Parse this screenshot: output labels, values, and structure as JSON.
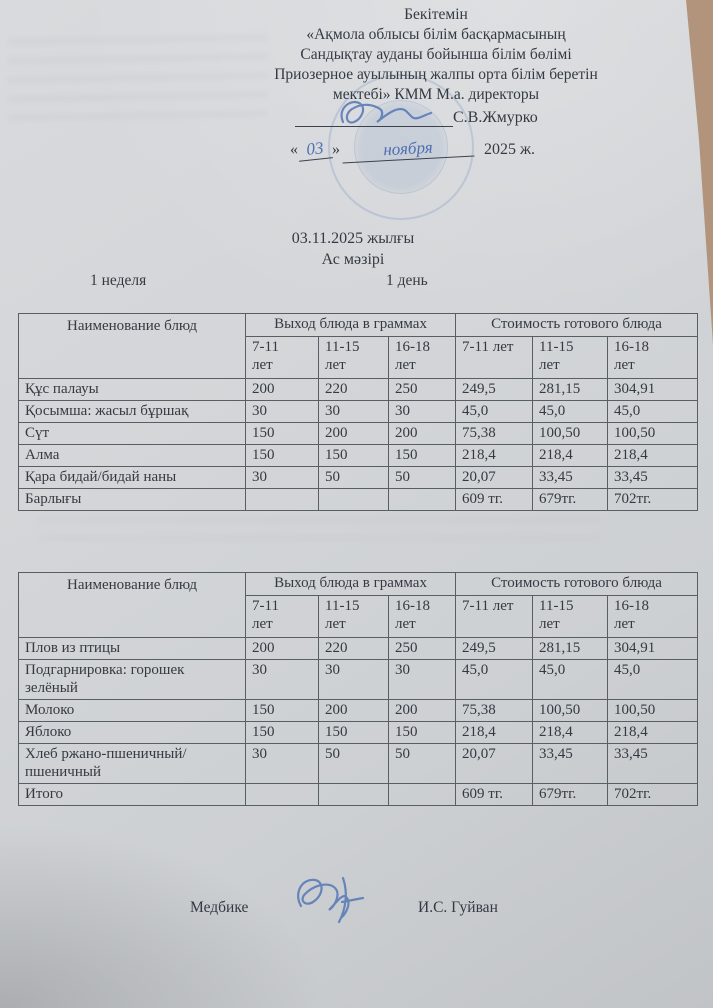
{
  "approval": {
    "approve_word": "Бекітемін",
    "org_lines": [
      "«Ақмола облысы білім басқармасының",
      "Сандықтау ауданы бойынша білім бөлімі",
      "Приозерное ауылының жалпы орта білім беретін",
      "мектебі»  КММ М.а. директоры"
    ],
    "signer_name": "С.В.Жмурко",
    "date": {
      "open_quote": "«",
      "day": "03",
      "close_quote": "»",
      "month": "ноября",
      "year": "2025 ж."
    }
  },
  "title": {
    "date_line": "03.11.2025 жылғы",
    "menu_line": "Ас мәзірі",
    "week_label": "1 неделя",
    "day_label": "1 день"
  },
  "tables": [
    {
      "name_header": "Наименование блюд",
      "group_headers": [
        "Выход блюда в граммах",
        "Стоимость готового блюда"
      ],
      "age_headers": [
        "7-11\nлет",
        "11-15\nлет",
        "16-18\nлет",
        "7-11 лет",
        "11-15\nлет",
        "16-18\nлет"
      ],
      "rows": [
        [
          "Құс палауы",
          "200",
          "220",
          "250",
          "249,5",
          "281,15",
          "304,91"
        ],
        [
          "Қосымша: жасыл бұршақ",
          "30",
          "30",
          "30",
          "45,0",
          "45,0",
          "45,0"
        ],
        [
          "Сүт",
          "150",
          "200",
          "200",
          "75,38",
          "100,50",
          "100,50"
        ],
        [
          "Алма",
          "150",
          "150",
          "150",
          "218,4",
          "218,4",
          "218,4"
        ],
        [
          "Қара бидай/бидай наны",
          "30",
          "50",
          "50",
          "20,07",
          "33,45",
          "33,45"
        ]
      ],
      "total_row": [
        "Барлығы",
        "",
        "",
        "",
        "609 тг.",
        "679тг.",
        "702тг."
      ]
    },
    {
      "name_header": "Наименование блюд",
      "group_headers": [
        "Выход блюда в граммах",
        "Стоимость готового блюда"
      ],
      "age_headers": [
        "7-11\nлет",
        "11-15\nлет",
        "16-18\nлет",
        "7-11 лет",
        "11-15\nлет",
        "16-18\nлет"
      ],
      "rows": [
        [
          "Плов из птицы",
          "200",
          "220",
          "250",
          "249,5",
          "281,15",
          "304,91"
        ],
        [
          "Подгарнировка:  горошек зелёный",
          "30",
          "30",
          "30",
          "45,0",
          "45,0",
          "45,0"
        ],
        [
          "Молоко",
          "150",
          "200",
          "200",
          "75,38",
          "100,50",
          "100,50"
        ],
        [
          "Яблоко",
          "150",
          "150",
          "150",
          "218,4",
          "218,4",
          "218,4"
        ],
        [
          "Хлеб ржано-пшеничный/пшеничный",
          "30",
          "50",
          "50",
          "20,07",
          "33,45",
          "33,45"
        ]
      ],
      "total_row": [
        "Итого",
        "",
        "",
        "",
        "609 тг.",
        "679тг.",
        "702тг."
      ]
    }
  ],
  "footer": {
    "role_label": "Медбике",
    "signer_name": "И.С. Гуйван"
  },
  "colors": {
    "paper": "#d3d5d8",
    "desk_tan": "#b2947c",
    "table_border": "#585e66",
    "printed_ink": "#343a43",
    "handwriting_blue": "#4e6fb2",
    "stamp_blue": "#6487be"
  }
}
